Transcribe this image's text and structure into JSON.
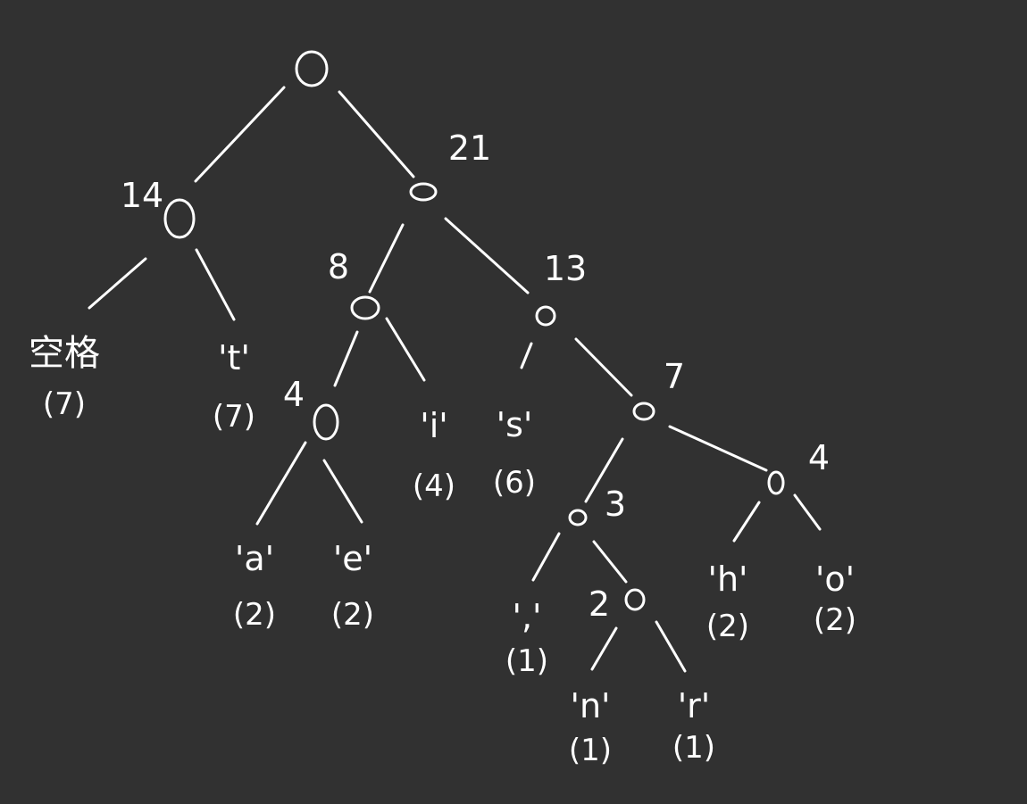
{
  "diagram": {
    "type": "huffman-tree",
    "background": "#313131",
    "ink": "#ffffff",
    "nodes": [
      {
        "id": "n0",
        "weight": "",
        "symbol": "",
        "freq": ""
      },
      {
        "id": "n1",
        "weight": "14",
        "symbol": "",
        "freq": ""
      },
      {
        "id": "n2",
        "weight": "21",
        "symbol": "",
        "freq": ""
      },
      {
        "id": "n3",
        "weight": "8",
        "symbol": "",
        "freq": ""
      },
      {
        "id": "n4",
        "weight": "13",
        "symbol": "",
        "freq": ""
      },
      {
        "id": "n5",
        "weight": "4",
        "symbol": "",
        "freq": ""
      },
      {
        "id": "n6",
        "weight": "7",
        "symbol": "",
        "freq": ""
      },
      {
        "id": "n7",
        "weight": "3",
        "symbol": "",
        "freq": ""
      },
      {
        "id": "n8",
        "weight": "4",
        "symbol": "",
        "freq": ""
      },
      {
        "id": "n9",
        "weight": "2",
        "symbol": "",
        "freq": ""
      },
      {
        "id": "l_space",
        "weight": "",
        "symbol": "空格",
        "freq": "(7)"
      },
      {
        "id": "l_t",
        "weight": "",
        "symbol": "'t'",
        "freq": "(7)"
      },
      {
        "id": "l_a",
        "weight": "",
        "symbol": "'a'",
        "freq": "(2)"
      },
      {
        "id": "l_e",
        "weight": "",
        "symbol": "'e'",
        "freq": "(2)"
      },
      {
        "id": "l_i",
        "weight": "",
        "symbol": "'i'",
        "freq": "(4)"
      },
      {
        "id": "l_s",
        "weight": "",
        "symbol": "'s'",
        "freq": "(6)"
      },
      {
        "id": "l_comma",
        "weight": "",
        "symbol": "','",
        "freq": "(1)"
      },
      {
        "id": "l_n",
        "weight": "",
        "symbol": "'n'",
        "freq": "(1)"
      },
      {
        "id": "l_r",
        "weight": "",
        "symbol": "'r'",
        "freq": "(1)"
      },
      {
        "id": "l_h",
        "weight": "",
        "symbol": "'h'",
        "freq": "(2)"
      },
      {
        "id": "l_o",
        "weight": "",
        "symbol": "'o'",
        "freq": "(2)"
      }
    ],
    "edges": [
      [
        "n0",
        "n1"
      ],
      [
        "n0",
        "n2"
      ],
      [
        "n1",
        "l_space"
      ],
      [
        "n1",
        "l_t"
      ],
      [
        "n2",
        "n3"
      ],
      [
        "n2",
        "n4"
      ],
      [
        "n3",
        "n5"
      ],
      [
        "n3",
        "l_i"
      ],
      [
        "n5",
        "l_a"
      ],
      [
        "n5",
        "l_e"
      ],
      [
        "n4",
        "l_s"
      ],
      [
        "n4",
        "n6"
      ],
      [
        "n6",
        "n7"
      ],
      [
        "n6",
        "n8"
      ],
      [
        "n7",
        "l_comma"
      ],
      [
        "n7",
        "n9"
      ],
      [
        "n9",
        "l_n"
      ],
      [
        "n9",
        "l_r"
      ],
      [
        "n8",
        "l_h"
      ],
      [
        "n8",
        "l_o"
      ]
    ]
  }
}
